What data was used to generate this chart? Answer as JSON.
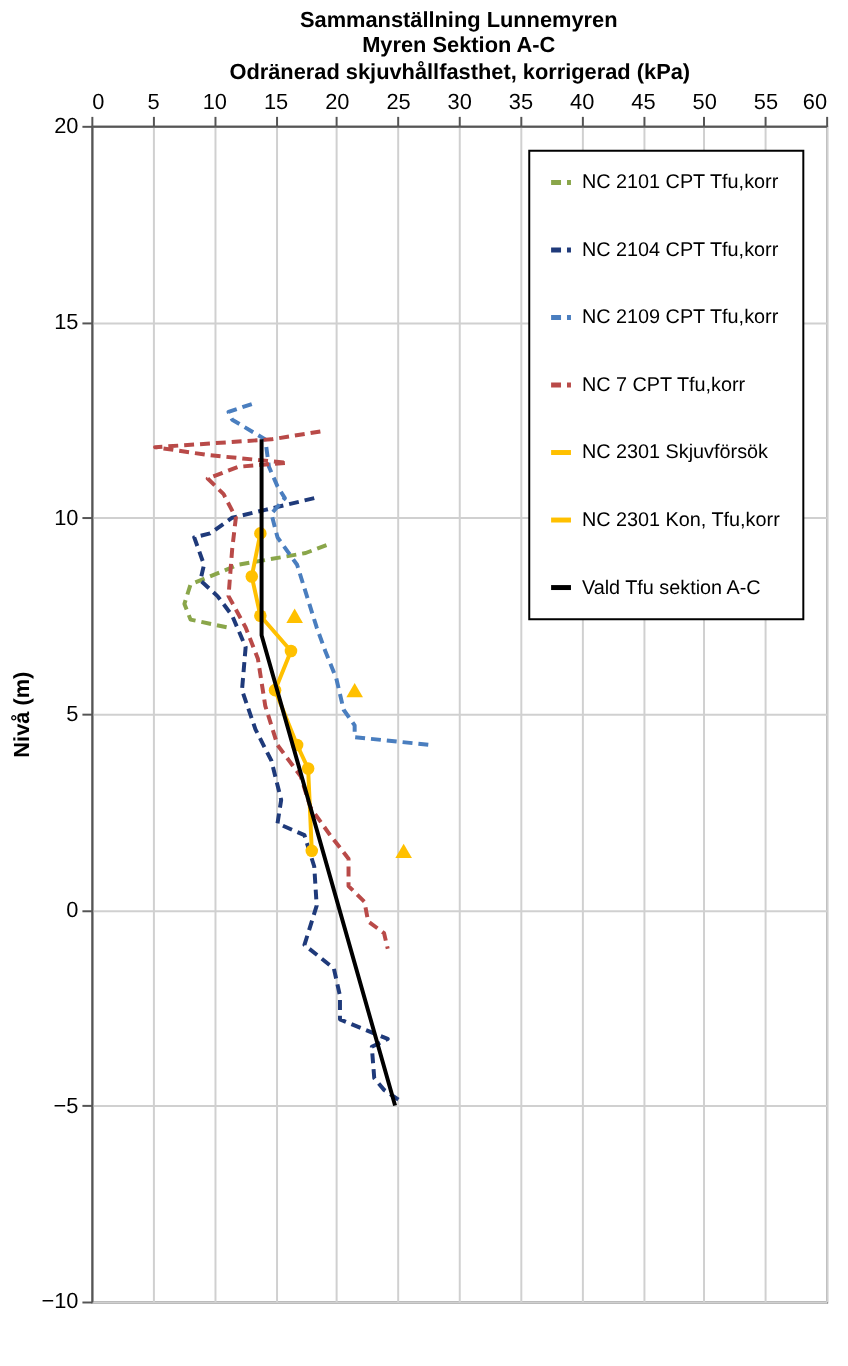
{
  "chart_data": {
    "type": "line",
    "title": [
      "Sammanställning Lunnemyren",
      "Myren Sektion A-C"
    ],
    "xlabel": "Odränerad skjuvhållfasthet, korrigerad (kPa)",
    "ylabel": "Nivå (m)",
    "xlim": [
      0,
      60
    ],
    "xticks": [
      0,
      5,
      10,
      15,
      20,
      25,
      30,
      35,
      40,
      45,
      50,
      55,
      60
    ],
    "ylim": [
      -10,
      20
    ],
    "yticks": [
      -10,
      -5,
      0,
      5,
      10,
      15,
      20
    ],
    "grid": true,
    "legend": "top right",
    "marker": "none",
    "series": [
      {
        "name": "NC 2101 CPT Tfu,korr",
        "color": "#8aa64a",
        "line_style": "dashed",
        "x": [
          19.2,
          17.5,
          12.0,
          8.1,
          7.6,
          8.1,
          11.1
        ],
        "values": [
          9.3,
          9.1,
          8.8,
          8.3,
          7.8,
          7.4,
          7.2
        ]
      },
      {
        "name": "NC 2104 CPT Tfu,korr",
        "color": "#1f3a7a",
        "line_style": "dashed",
        "x": [
          18.2,
          14.2,
          11.5,
          9.7,
          8.4,
          9.2,
          8.9,
          10.3,
          11.5,
          12.6,
          12.3,
          13.4,
          14.7,
          15.5,
          15.2,
          17.4,
          18.2,
          18.4,
          17.4,
          19.8,
          20.3,
          20.3,
          23.4,
          24.2,
          22.9,
          23.1,
          23.9,
          25.3
        ],
        "values": [
          10.5,
          10.2,
          10.0,
          9.6,
          9.5,
          8.8,
          8.4,
          8.0,
          7.5,
          6.7,
          5.6,
          4.6,
          3.8,
          2.8,
          2.2,
          1.9,
          1.1,
          0.1,
          -0.9,
          -1.5,
          -2.2,
          -2.8,
          -3.2,
          -3.3,
          -3.5,
          -4.3,
          -4.6,
          -4.9
        ]
      },
      {
        "name": "NC 2109 CPT Tfu,korr",
        "color": "#4a7ebf",
        "line_style": "dashed",
        "x": [
          13.1,
          11.2,
          11.5,
          14.2,
          14.5,
          15.2,
          15.8,
          14.7,
          15.2,
          16.8,
          17.4,
          18.4,
          19.1,
          20.0,
          20.6,
          21.5,
          21.5,
          27.7
        ],
        "values": [
          12.9,
          12.7,
          12.5,
          12.0,
          11.3,
          10.8,
          10.5,
          10.1,
          9.5,
          8.8,
          8.2,
          7.2,
          6.6,
          5.9,
          5.1,
          4.7,
          4.4,
          4.2
        ]
      },
      {
        "name": "NC 7 CPT Tfu,korr",
        "color": "#b94a48",
        "line_style": "dashed",
        "x": [
          18.7,
          14.7,
          5.2,
          9.5,
          16.0,
          12.0,
          9.5,
          10.8,
          11.8,
          11.5,
          11.2,
          12.6,
          13.6,
          14.2,
          15.2,
          17.1,
          17.9,
          19.5,
          21.0,
          21.0,
          22.3,
          22.6,
          23.9,
          24.2
        ],
        "values": [
          12.2,
          12.0,
          11.8,
          11.6,
          11.4,
          11.3,
          11.0,
          10.6,
          10.0,
          9.2,
          8.0,
          7.2,
          6.4,
          5.2,
          4.2,
          3.4,
          2.6,
          1.9,
          1.3,
          0.6,
          0.2,
          -0.3,
          -0.6,
          -1.0
        ]
      },
      {
        "name": "NC 2301 Skjuvförsök",
        "color": "#ffc000",
        "type": "scatter",
        "marker": "triangle",
        "x": [
          16.6,
          21.5,
          25.5
        ],
        "values": [
          7.5,
          5.6,
          1.5
        ]
      },
      {
        "name": "NC 2301 Kon, Tfu,korr",
        "color": "#ffc000",
        "marker": "circle",
        "line_style": "solid",
        "x": [
          13.8,
          13.1,
          13.8,
          16.3,
          15.0,
          16.8,
          17.7,
          18.0
        ],
        "values": [
          9.6,
          8.5,
          7.5,
          6.6,
          5.6,
          4.2,
          3.6,
          1.5
        ]
      },
      {
        "name": "Vald Tfu sektion A-C",
        "color": "#000000",
        "line_style": "solid",
        "x": [
          13.9,
          13.9,
          24.8
        ],
        "values": [
          12.0,
          7.0,
          -5.0
        ]
      }
    ]
  }
}
